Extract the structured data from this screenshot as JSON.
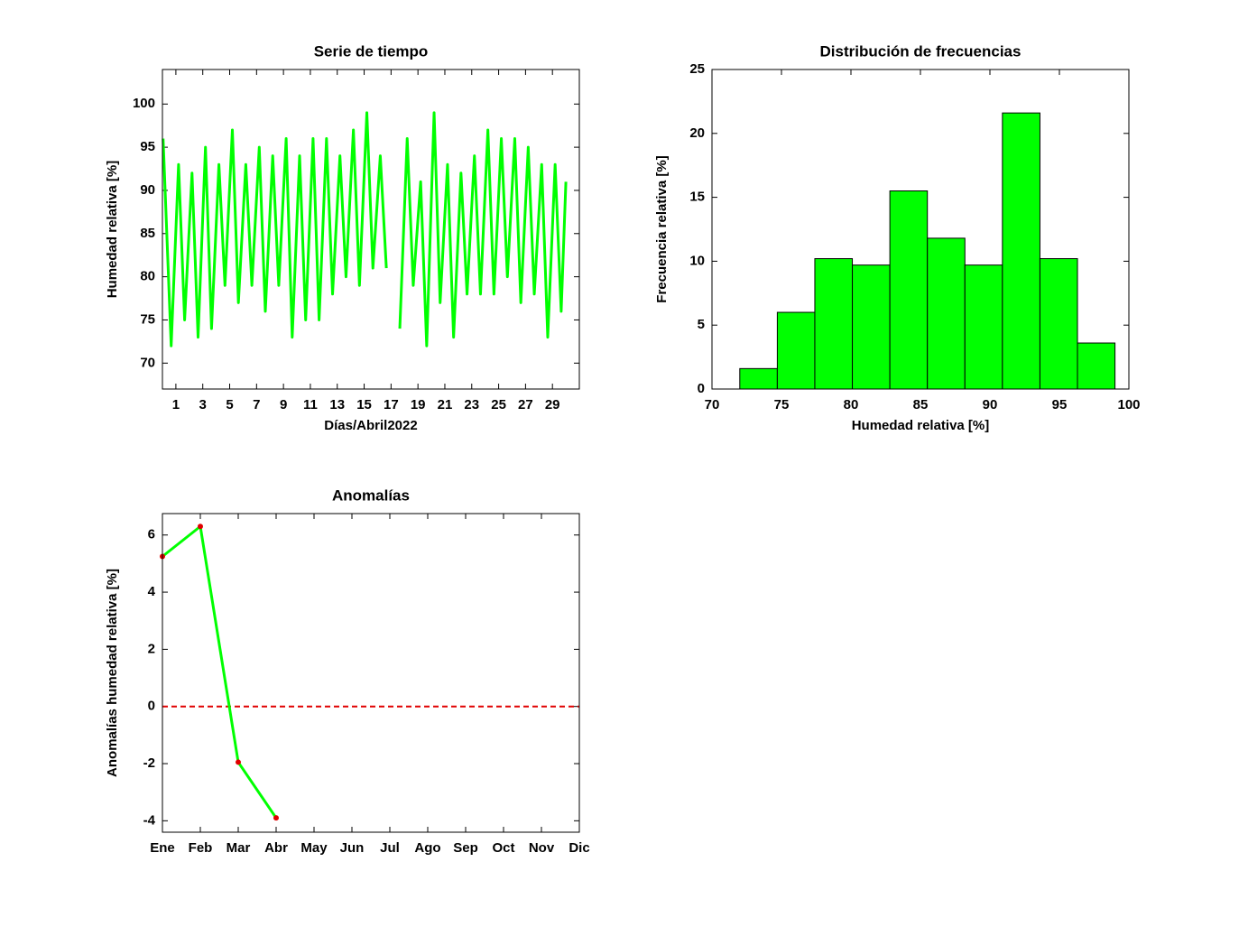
{
  "chart_data": [
    {
      "type": "line",
      "title": "Serie de tiempo",
      "x_label": "Días/Abril2022",
      "y_label": "Humedad relativa [%]",
      "color": "#00ff00",
      "x": [
        0.05,
        0.65,
        1.2,
        1.65,
        2.2,
        2.65,
        3.2,
        3.65,
        4.2,
        4.65,
        5.2,
        5.65,
        6.2,
        6.65,
        7.2,
        7.65,
        8.2,
        8.65,
        9.2,
        9.65,
        10.2,
        10.65,
        11.2,
        11.65,
        12.2,
        12.65,
        13.2,
        13.65,
        14.2,
        14.65,
        15.2,
        15.65,
        16.2,
        16.65,
        17.0,
        17.65,
        18.2,
        18.65,
        19.2,
        19.65,
        20.2,
        20.65,
        21.2,
        21.65,
        22.2,
        22.65,
        23.2,
        23.65,
        24.2,
        24.65,
        25.2,
        25.65,
        26.2,
        26.65,
        27.2,
        27.65,
        28.2,
        28.65,
        29.2,
        29.65,
        30.0
      ],
      "values": [
        96,
        72,
        93,
        75,
        92,
        73,
        95,
        74,
        93,
        79,
        97,
        77,
        93,
        79,
        95,
        76,
        94,
        79,
        96,
        73,
        94,
        75,
        96,
        75,
        96,
        78,
        94,
        80,
        97,
        79,
        99,
        81,
        94,
        81,
        null,
        74,
        96,
        79,
        91,
        72,
        99,
        77,
        93,
        73,
        92,
        78,
        94,
        78,
        97,
        78,
        96,
        80,
        96,
        77,
        95,
        78,
        93,
        73,
        93,
        76,
        91
      ],
      "xlim": [
        0,
        31
      ],
      "xticks": [
        1,
        3,
        5,
        7,
        9,
        11,
        13,
        15,
        17,
        19,
        21,
        23,
        25,
        27,
        29
      ],
      "ylim": [
        67,
        104
      ],
      "yticks": [
        70,
        75,
        80,
        85,
        90,
        95,
        100
      ]
    },
    {
      "type": "histogram",
      "title": "Distribución de frecuencias",
      "x_label": "Humedad relativa [%]",
      "y_label": "Frecuencia relativa [%]",
      "color": "#00ff00",
      "bins": [
        72,
        74.7,
        77.4,
        80.1,
        82.8,
        85.5,
        88.2,
        90.9,
        93.6,
        96.3,
        99
      ],
      "values": [
        1.6,
        6.0,
        10.2,
        9.7,
        15.5,
        11.8,
        9.7,
        21.6,
        10.2,
        3.6
      ],
      "xlim": [
        70,
        100
      ],
      "xticks": [
        70,
        75,
        80,
        85,
        90,
        95,
        100
      ],
      "ylim": [
        0,
        25
      ],
      "yticks": [
        0,
        5,
        10,
        15,
        20,
        25
      ]
    },
    {
      "type": "line",
      "title": "Anomalías",
      "y_label": "Anomalías humedad relativa [%]",
      "color": "#00ff00",
      "marker_color": "#e00000",
      "categories": [
        "Ene",
        "Feb",
        "Mar",
        "Abr",
        "May",
        "Jun",
        "Jul",
        "Ago",
        "Sep",
        "Oct",
        "Nov",
        "Dic"
      ],
      "values": [
        5.25,
        6.3,
        -1.95,
        -3.9,
        null,
        null,
        null,
        null,
        null,
        null,
        null,
        null
      ],
      "reference_line": 0,
      "reference_color": "#e00000",
      "ylim": [
        -4.4,
        6.75
      ],
      "yticks": [
        -4,
        -2,
        0,
        2,
        4,
        6
      ]
    }
  ]
}
